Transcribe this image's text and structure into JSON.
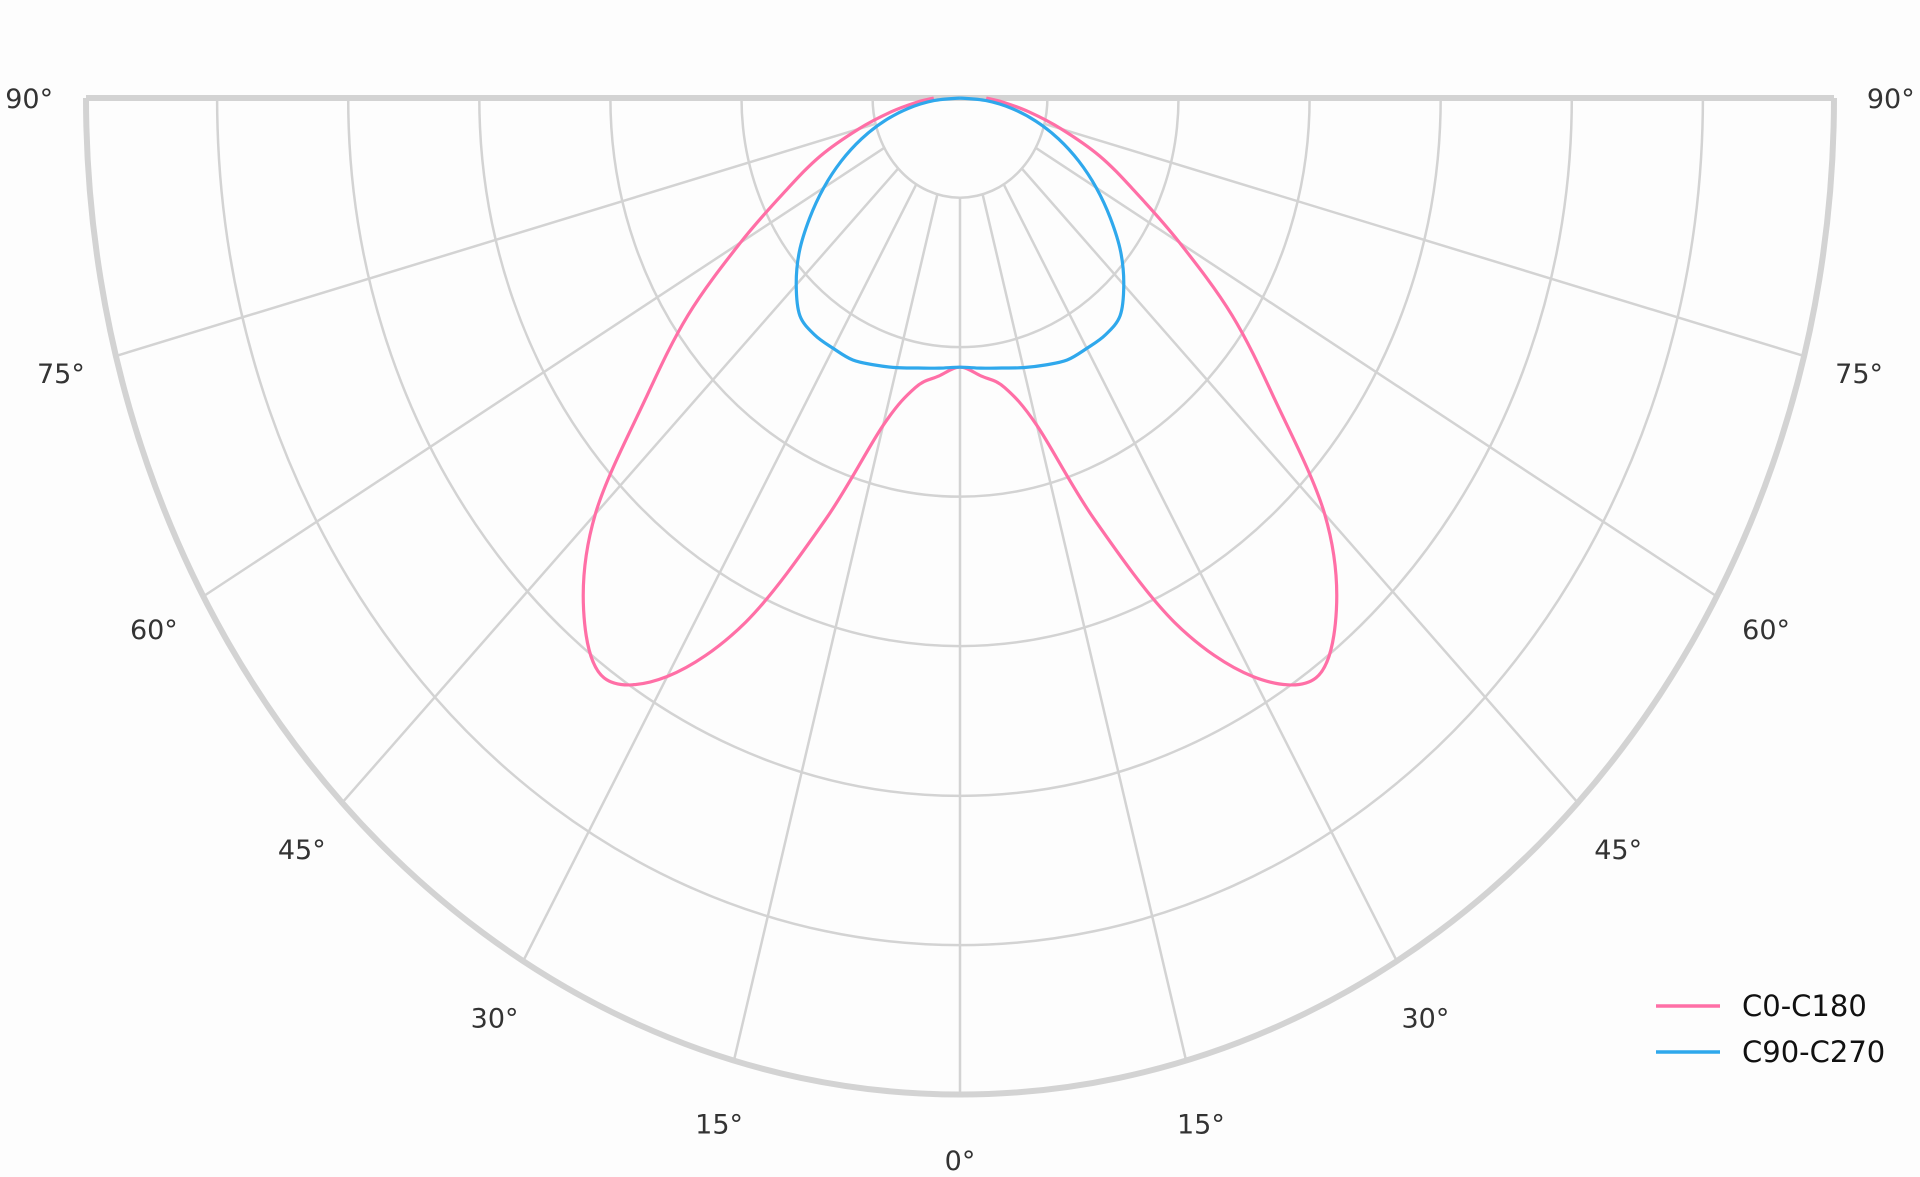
{
  "chart_data": {
    "type": "polar-line",
    "title": "",
    "angle_unit": "degrees",
    "angle_ticks": [
      "0°",
      "15°",
      "30°",
      "45°",
      "60°",
      "75°",
      "90°"
    ],
    "angle_tick_values": [
      0,
      15,
      30,
      45,
      60,
      75,
      90
    ],
    "angle_range": [
      -90,
      90
    ],
    "radial_range": [
      0,
      1
    ],
    "radial_gridlines": [
      0.1,
      0.25,
      0.4,
      0.55,
      0.7,
      0.85,
      1.0
    ],
    "radial_tick_labels_shown": false,
    "grid": true,
    "legend_position": "bottom-right",
    "symmetric": true,
    "series": [
      {
        "name": "C0-C180",
        "color": "#ff6fa6",
        "angles": [
          0,
          5,
          10,
          15,
          20,
          25,
          30,
          35,
          40,
          45,
          50,
          55,
          60,
          65,
          70,
          75,
          80,
          85,
          90
        ],
        "values": [
          0.27,
          0.28,
          0.295,
          0.34,
          0.45,
          0.58,
          0.67,
          0.71,
          0.67,
          0.59,
          0.47,
          0.38,
          0.29,
          0.22,
          0.17,
          0.12,
          0.08,
          0.05,
          0.03
        ]
      },
      {
        "name": "C90-C270",
        "color": "#2fa8ec",
        "angles": [
          0,
          5,
          10,
          15,
          20,
          25,
          30,
          35,
          40,
          45,
          50,
          55,
          60,
          65,
          70,
          75,
          80,
          85,
          90
        ],
        "values": [
          0.27,
          0.272,
          0.275,
          0.28,
          0.285,
          0.29,
          0.29,
          0.29,
          0.285,
          0.265,
          0.24,
          0.21,
          0.18,
          0.15,
          0.12,
          0.09,
          0.06,
          0.03,
          0.0
        ]
      }
    ]
  }
}
